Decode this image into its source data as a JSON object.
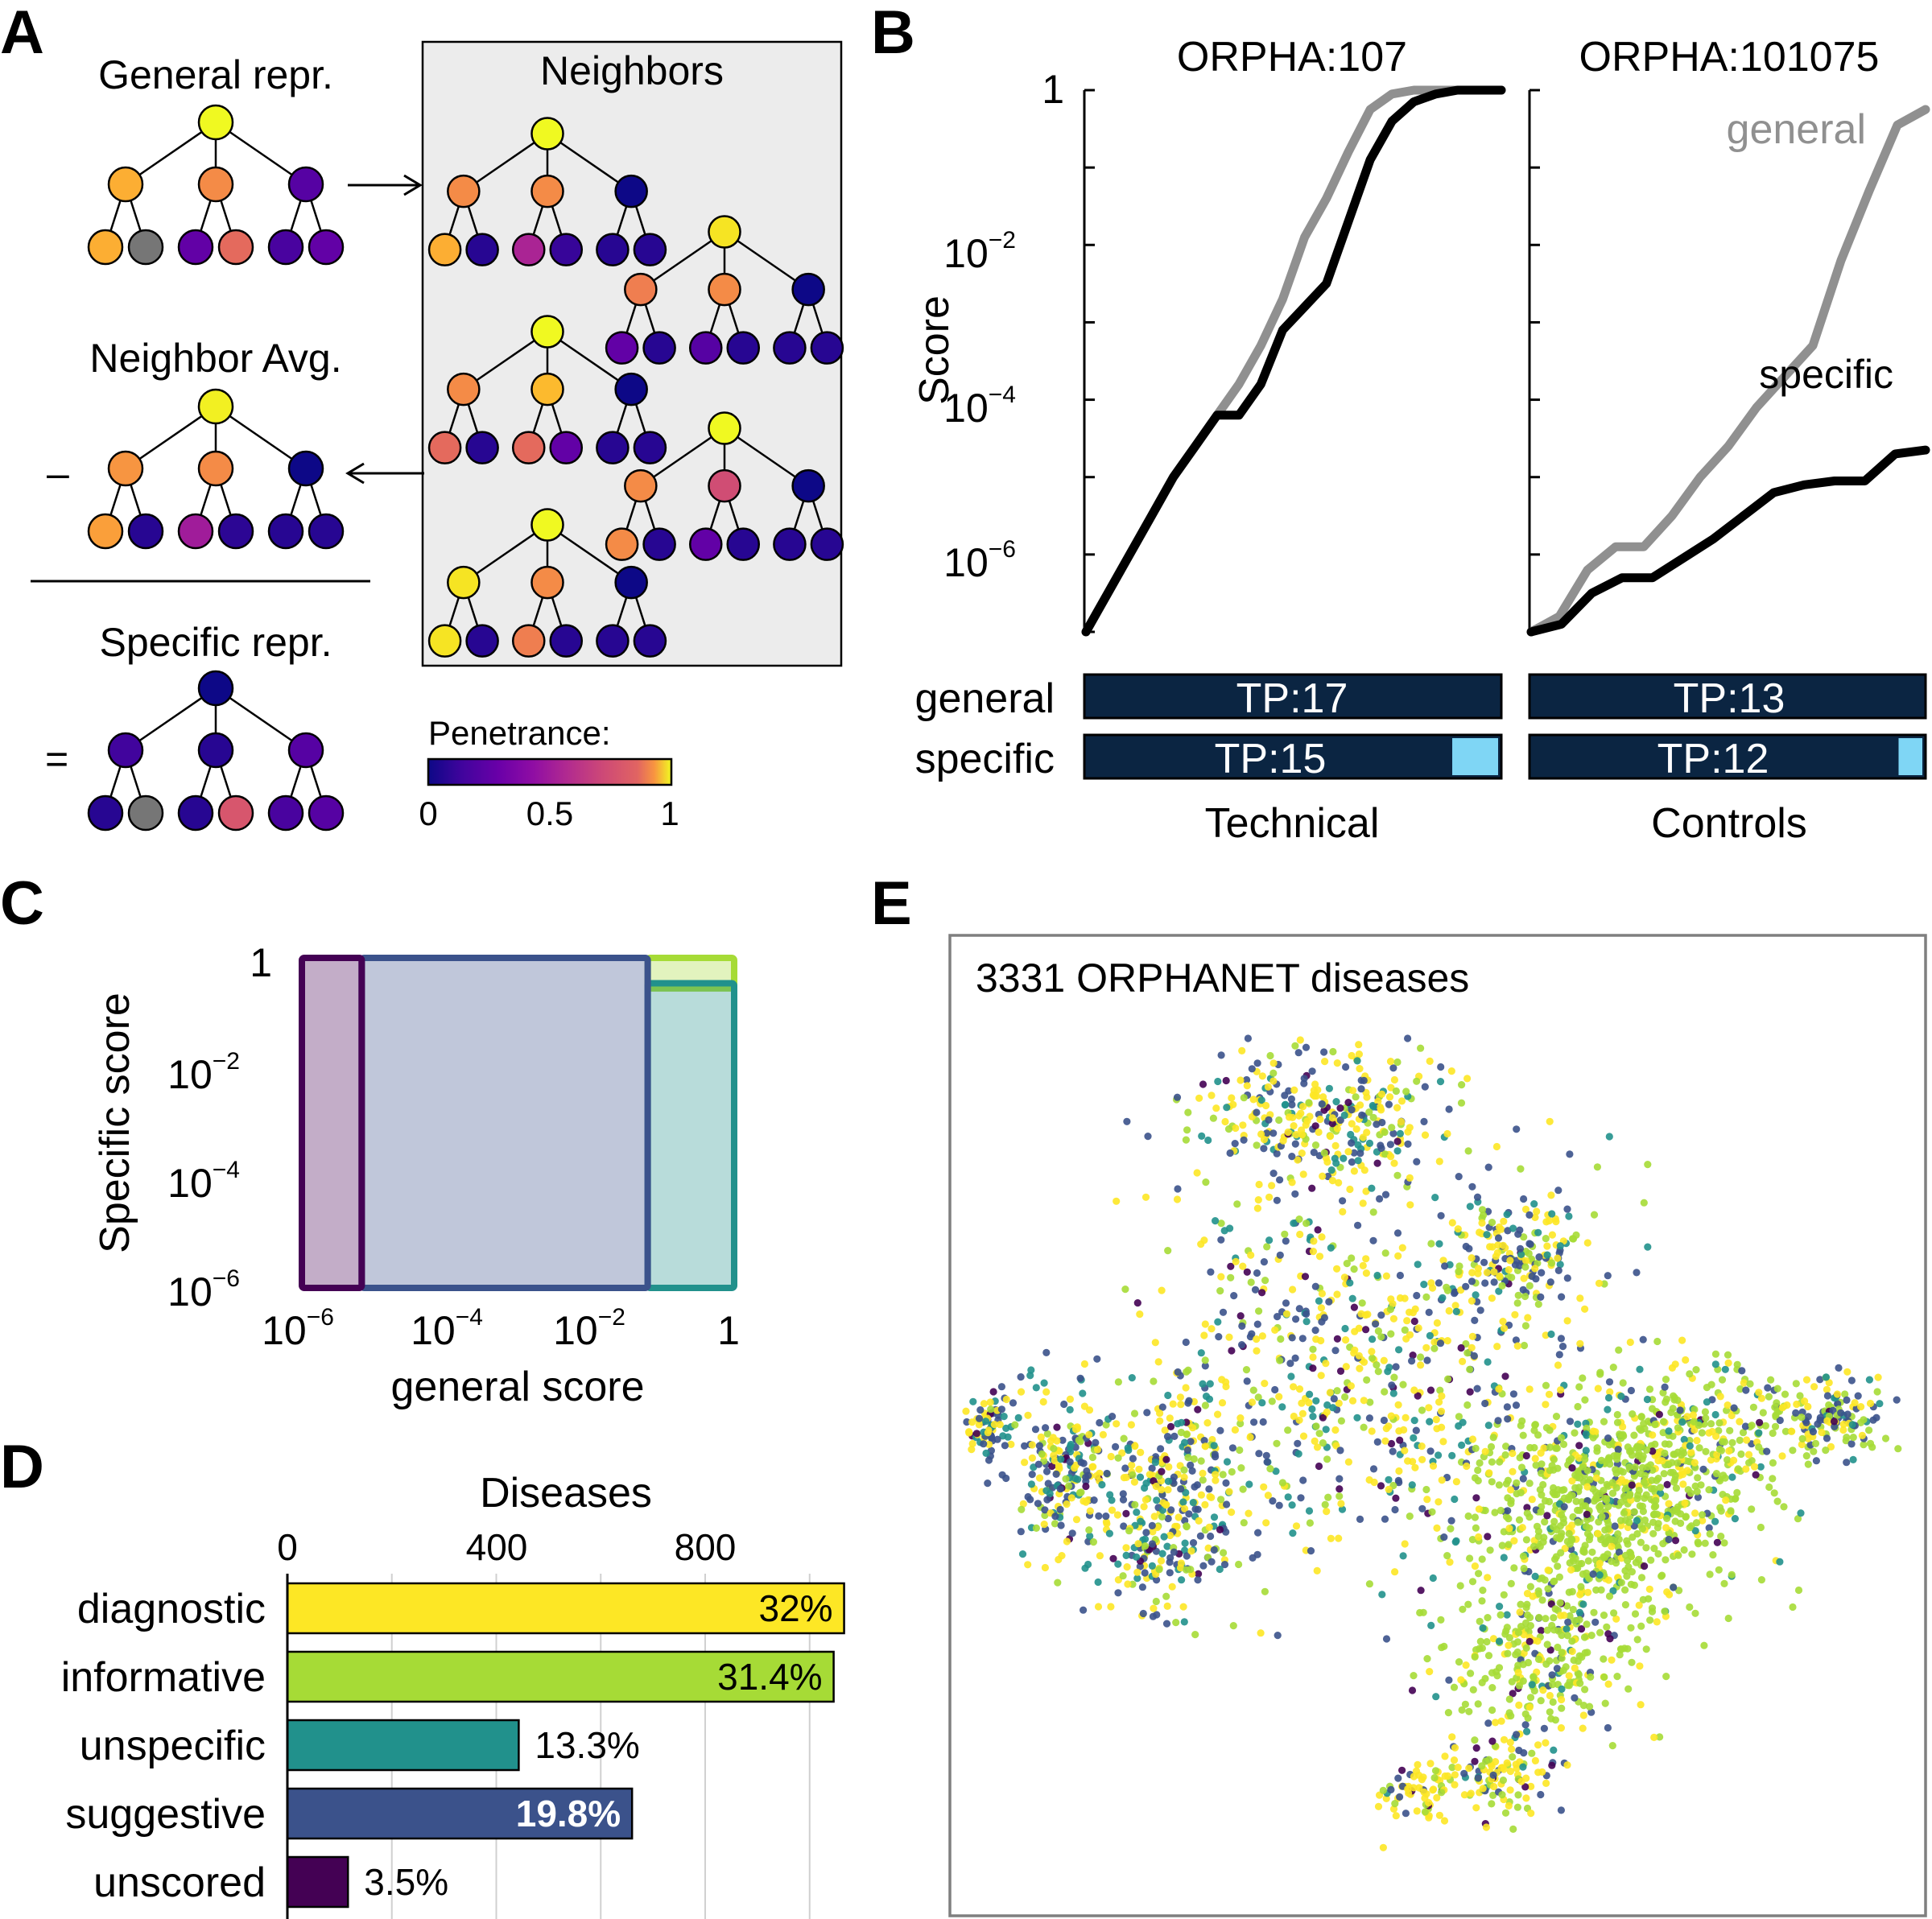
{
  "colors": {
    "unscored": "#440154",
    "suggestive": "#3b528b",
    "unspecific": "#21918c",
    "informative": "#a6db36",
    "diagnostic": "#fde725",
    "tp_bar": "#0b2542",
    "fp_bar": "#7fd6f5",
    "general_line": "#909090",
    "specific_line": "#000000",
    "missing_node": "#767676"
  },
  "panel_a": {
    "label": "A",
    "general_title": "General repr.",
    "neighbors_title": "Neighbors",
    "neighbor_avg_title": "Neighbor Avg.",
    "specific_title": "Specific repr.",
    "minus_sign": "–",
    "equals_sign": "=",
    "penetrance_label": "Penetrance:",
    "colorbar_ticks": [
      "0",
      "0.5",
      "1"
    ],
    "trees": {
      "general": [
        1.0,
        0.82,
        0.72,
        0.15,
        0.82,
        null,
        0.18,
        0.62,
        0.12,
        0.18
      ],
      "neighbor_1": [
        1.0,
        0.72,
        0.72,
        0.0,
        0.82,
        0.05,
        0.38,
        0.08,
        0.05,
        0.05
      ],
      "neighbor_2": [
        0.95,
        0.68,
        0.72,
        0.0,
        0.18,
        0.05,
        0.15,
        0.05,
        0.05,
        0.05
      ],
      "neighbor_3": [
        1.0,
        0.72,
        0.85,
        0.0,
        0.62,
        0.05,
        0.62,
        0.18,
        0.05,
        0.05
      ],
      "neighbor_4": [
        1.0,
        0.72,
        0.52,
        0.0,
        0.72,
        0.05,
        0.18,
        0.05,
        0.05,
        0.05
      ],
      "neighbor_5": [
        1.0,
        0.95,
        0.72,
        0.0,
        0.95,
        0.05,
        0.68,
        0.05,
        0.05,
        0.05
      ],
      "neighbor_avg": [
        0.98,
        0.75,
        0.72,
        0.0,
        0.78,
        0.05,
        0.35,
        0.06,
        0.05,
        0.05
      ],
      "specific": [
        0.0,
        0.1,
        0.05,
        0.15,
        0.05,
        null,
        0.05,
        0.55,
        0.12,
        0.15
      ]
    }
  },
  "panel_b": {
    "label": "B",
    "ylabel": "Score",
    "left_title": "ORPHA:107",
    "right_title": "ORPHA:101075",
    "ytick_one": "1",
    "ytick_base": "10",
    "ytick_exps": [
      "−2",
      "−4",
      "−6"
    ],
    "general_label": "general",
    "specific_label": "specific",
    "left_group": "Technical",
    "right_group": "Controls",
    "left_tp_general": "TP:17",
    "left_tp_specific": "TP:15",
    "right_tp_general": "TP:13",
    "right_tp_specific": "TP:12",
    "left_fp_specific_frac": 0.11,
    "right_fp_specific_frac": 0.06,
    "left_general_log": [
      -7,
      -6.5,
      -6,
      -5.5,
      -5,
      -4.6,
      -4.2,
      -3.8,
      -3.3,
      -2.7,
      -1.9,
      -1.4,
      -0.8,
      -0.25,
      -0.05,
      0,
      0,
      0,
      0,
      0
    ],
    "left_specific_log": [
      -7,
      -6.5,
      -6,
      -5.5,
      -5,
      -4.6,
      -4.2,
      -4.2,
      -3.8,
      -3.1,
      -2.8,
      -2.5,
      -1.7,
      -0.9,
      -0.4,
      -0.15,
      -0.05,
      0,
      0,
      0
    ],
    "right_general_log": [
      -7,
      -6.8,
      -6.2,
      -5.9,
      -5.9,
      -5.5,
      -5.0,
      -4.6,
      -4.1,
      -3.7,
      -3.3,
      -2.2,
      -1.3,
      -0.45,
      -0.25
    ],
    "right_specific_log": [
      -7,
      -6.9,
      -6.5,
      -6.3,
      -6.3,
      -6.05,
      -5.8,
      -5.5,
      -5.2,
      -5.1,
      -5.05,
      -5.05,
      -4.7,
      -4.65
    ]
  },
  "panel_c": {
    "label": "C",
    "xlabel": "general score",
    "ylabel": "Specific score",
    "tick_base": "10",
    "tick_exps": [
      "−6",
      "−4",
      "−2"
    ],
    "tick_one": "1"
  },
  "panel_d": {
    "label": "D",
    "axis_title": "Diseases",
    "xticks": [
      "0",
      "400",
      "800"
    ],
    "categories": [
      "diagnostic",
      "informative",
      "unspecific",
      "suggestive",
      "unscored"
    ],
    "values": [
      1066,
      1046,
      443,
      660,
      116
    ],
    "pct_labels": [
      "32%",
      "31.4%",
      "13.3%",
      "19.8%",
      "3.5%"
    ]
  },
  "panel_e": {
    "label": "E",
    "title": "3331 ORPHANET diseases"
  },
  "chart_data": [
    {
      "type": "line",
      "title": "ORPHA:107",
      "xlabel": "Technical",
      "ylabel": "Score",
      "yscale": "log",
      "ylim": [
        1e-07,
        1
      ],
      "series": [
        {
          "name": "general",
          "values": [
            1e-07,
            3e-07,
            1e-06,
            3e-06,
            1e-05,
            2.5e-05,
            6e-05,
            0.00016,
            0.0005,
            0.002,
            0.013,
            0.04,
            0.16,
            0.56,
            0.89,
            1,
            1,
            1,
            1,
            1
          ]
        },
        {
          "name": "specific",
          "values": [
            1e-07,
            3e-07,
            1e-06,
            3e-06,
            1e-05,
            2.5e-05,
            6e-05,
            6.3e-05,
            0.00016,
            0.0008,
            0.0016,
            0.0032,
            0.02,
            0.13,
            0.4,
            0.7,
            0.89,
            1,
            1,
            1
          ]
        }
      ],
      "true_positives": {
        "general": 17,
        "specific": 15
      }
    },
    {
      "type": "line",
      "title": "ORPHA:101075",
      "xlabel": "Controls",
      "ylabel": "Score",
      "yscale": "log",
      "ylim": [
        1e-07,
        1
      ],
      "series": [
        {
          "name": "general",
          "values": [
            1e-07,
            1.6e-07,
            6e-07,
            1.3e-06,
            1.3e-06,
            3e-06,
            1e-05,
            2.5e-05,
            8e-05,
            0.0002,
            0.0005,
            0.006,
            0.05,
            0.35,
            0.56
          ]
        },
        {
          "name": "specific",
          "values": [
            1e-07,
            1.3e-07,
            3e-07,
            5e-07,
            5e-07,
            9e-07,
            1.6e-06,
            3e-06,
            6e-06,
            8e-06,
            9e-06,
            9e-06,
            2e-05,
            2.2e-05
          ]
        }
      ],
      "true_positives": {
        "general": 13,
        "specific": 12
      }
    },
    {
      "type": "bar",
      "title": "Diseases",
      "orientation": "horizontal",
      "categories": [
        "diagnostic",
        "informative",
        "unspecific",
        "suggestive",
        "unscored"
      ],
      "values": [
        1066,
        1046,
        443,
        660,
        116
      ],
      "percentages": [
        "32%",
        "31.4%",
        "13.3%",
        "19.8%",
        "3.5%"
      ],
      "xlim": [
        0,
        1100
      ]
    },
    {
      "type": "scatter",
      "title": "3331 ORPHANET diseases",
      "n_points": 3331,
      "color_categories": [
        "diagnostic",
        "informative",
        "unspecific",
        "suggestive",
        "unscored"
      ]
    }
  ]
}
